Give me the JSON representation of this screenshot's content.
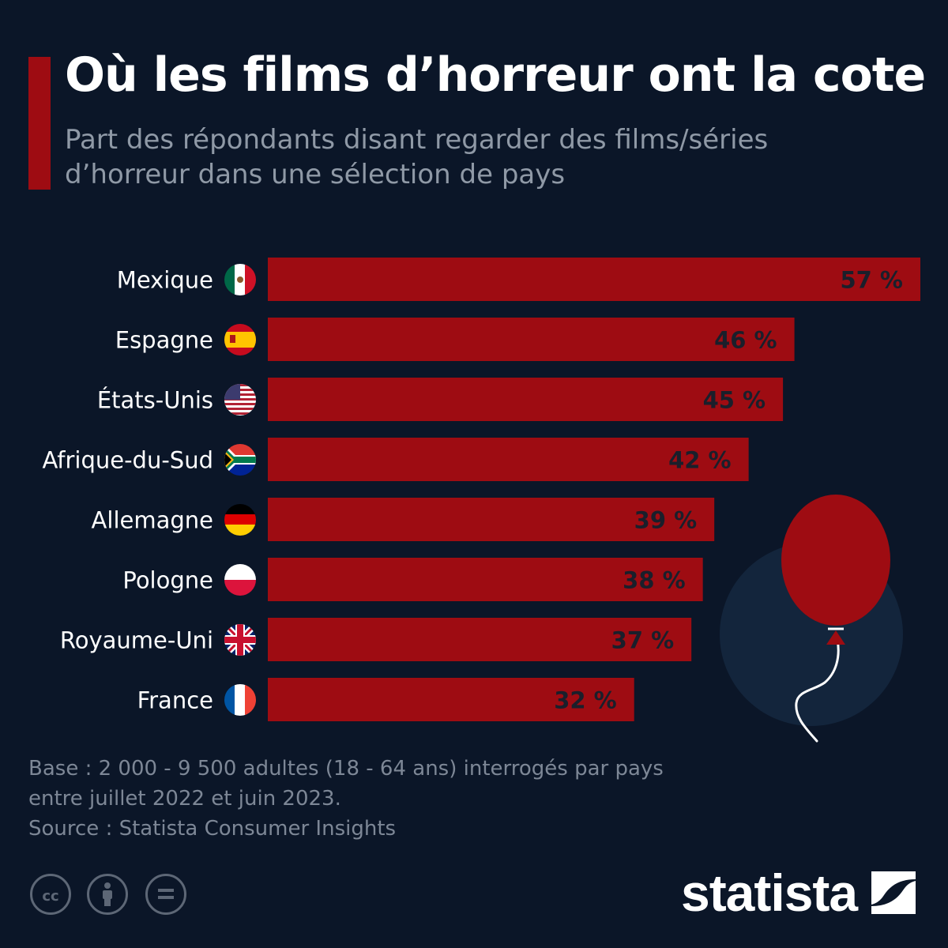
{
  "header": {
    "title": "Où les films d’horreur ont la cote",
    "subtitle": "Part des répondants disant regarder des films/séries d’horreur dans une sélection de pays"
  },
  "chart_data": {
    "type": "bar",
    "orientation": "horizontal",
    "title": "Où les films d’horreur ont la cote",
    "subtitle": "Part des répondants disant regarder des films/séries d’horreur dans une sélection de pays",
    "categories": [
      "Mexique",
      "Espagne",
      "États-Unis",
      "Afrique-du-Sud",
      "Allemagne",
      "Pologne",
      "Royaume-Uni",
      "France"
    ],
    "values": [
      57,
      46,
      45,
      42,
      39,
      38,
      37,
      32
    ],
    "value_labels": [
      "57 %",
      "46 %",
      "45 %",
      "42 %",
      "39 %",
      "38 %",
      "37 %",
      "32 %"
    ],
    "flags": [
      "mexico-flag",
      "spain-flag",
      "usa-flag",
      "south-africa-flag",
      "germany-flag",
      "poland-flag",
      "uk-flag",
      "france-flag"
    ],
    "unit": "%",
    "xlim": [
      0,
      57
    ],
    "grid": false,
    "legend": "none",
    "bar_color": "#9e0c12"
  },
  "footer": {
    "note": "Base : 2 000 - 9 500 adultes (18 - 64 ans) interrogés par pays entre juillet 2022 et juin 2023.",
    "source": "Source : Statista Consumer Insights",
    "brand": "statista",
    "license_icons": [
      "cc-icon",
      "attribution-icon",
      "no-derivatives-icon"
    ]
  },
  "colors": {
    "background": "#0b1628",
    "accent": "#9e0c12",
    "bar_label": "#1a1f2b",
    "text": "#ffffff",
    "muted": "#8f99a6",
    "decor_circle": "#13253c"
  }
}
